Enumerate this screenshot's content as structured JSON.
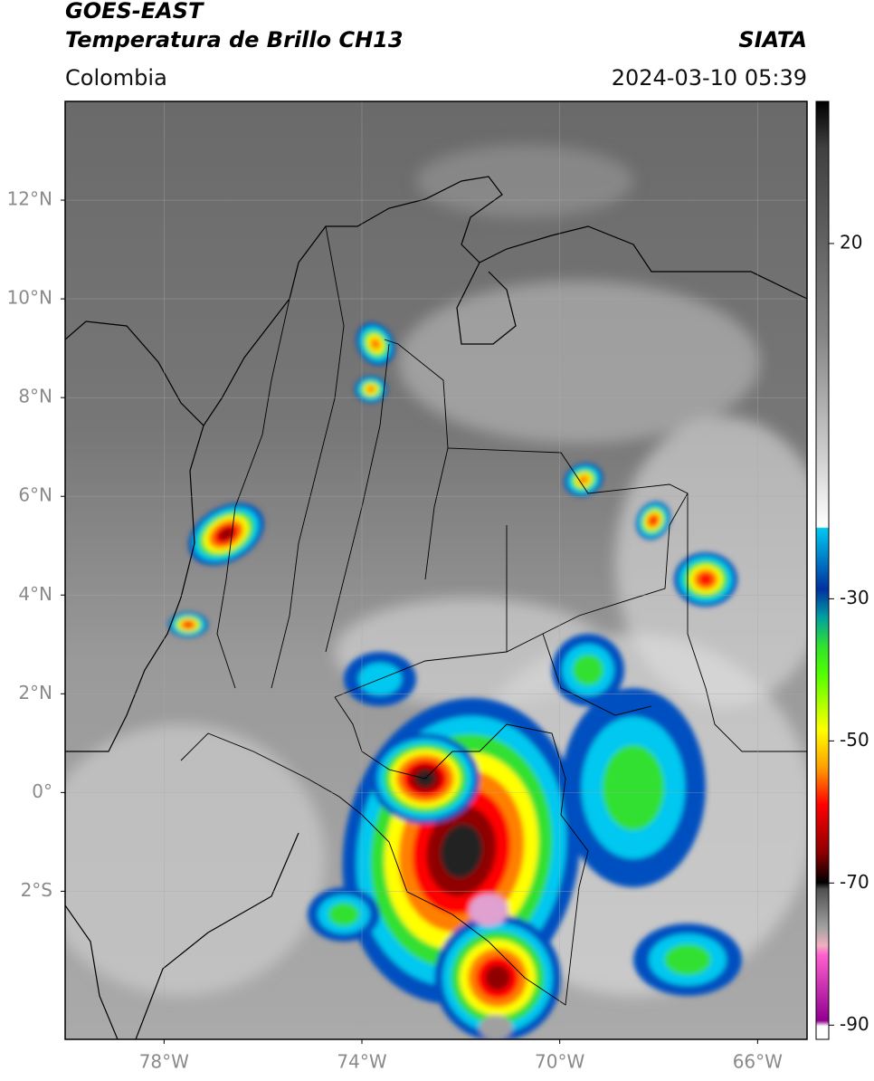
{
  "map": {
    "title": "GOES-EAST",
    "subtitle": "Temperatura de Brillo CH13",
    "source": "SIATA",
    "region": "Colombia",
    "timestamp": "2024-03-10 05:39",
    "xlim": [
      -80,
      -65
    ],
    "ylim": [
      -5,
      14
    ],
    "xticks": [
      {
        "value": -78,
        "label": "78°W"
      },
      {
        "value": -74,
        "label": "74°W"
      },
      {
        "value": -70,
        "label": "70°W"
      },
      {
        "value": -66,
        "label": "66°W"
      }
    ],
    "yticks": [
      {
        "value": 12,
        "label": "12°N"
      },
      {
        "value": 10,
        "label": "10°N"
      },
      {
        "value": 8,
        "label": "8°N"
      },
      {
        "value": 6,
        "label": "6°N"
      },
      {
        "value": 4,
        "label": "4°N"
      },
      {
        "value": 2,
        "label": "2°N"
      },
      {
        "value": 0,
        "label": "0°"
      },
      {
        "value": -2,
        "label": "2°S"
      }
    ],
    "grid": true,
    "colorbar": {
      "lim": [
        -92,
        40
      ],
      "ticks": [
        20,
        -30,
        -50,
        -70,
        -90
      ]
    }
  }
}
